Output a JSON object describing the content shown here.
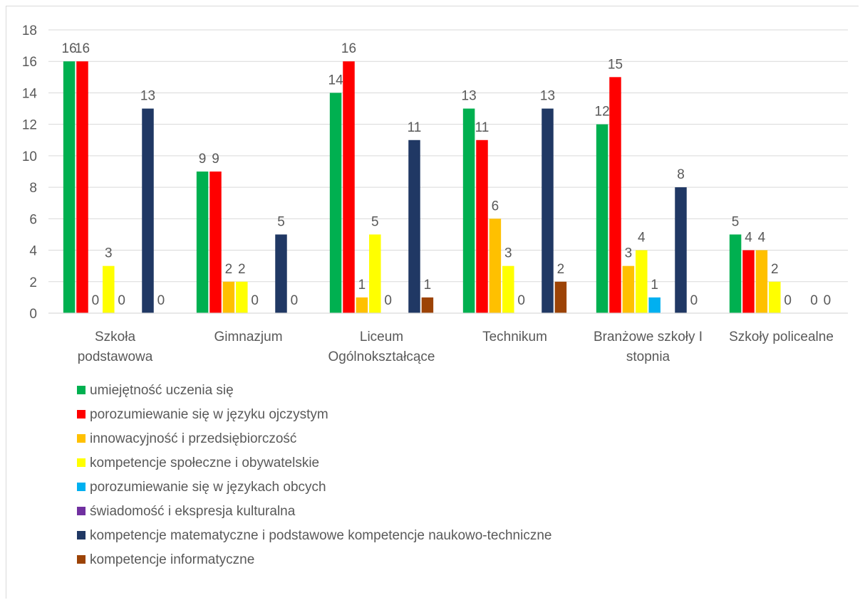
{
  "chart_data": {
    "type": "bar",
    "categories": [
      [
        "Szkoła",
        "podstawowa"
      ],
      [
        "Gimnazjum"
      ],
      [
        "Liceum",
        "Ogólnokształcące"
      ],
      [
        "Technikum"
      ],
      [
        "Branżowe szkoły I",
        "stopnia"
      ],
      [
        "Szkoły policealne"
      ]
    ],
    "series": [
      {
        "name": "umiejętność uczenia się",
        "color": "#00b050",
        "values": [
          16,
          9,
          14,
          13,
          12,
          5
        ]
      },
      {
        "name": "porozumiewanie się w języku ojczystym",
        "color": "#ff0000",
        "values": [
          16,
          9,
          16,
          11,
          15,
          4
        ]
      },
      {
        "name": "innowacyjność i przedsiębiorczość",
        "color": "#ffc000",
        "values": [
          0,
          2,
          1,
          6,
          3,
          4
        ]
      },
      {
        "name": "kompetencje społeczne i obywatelskie",
        "color": "#ffff00",
        "values": [
          3,
          2,
          5,
          3,
          4,
          2
        ]
      },
      {
        "name": "porozumiewanie się w językach obcych",
        "color": "#00b0f0",
        "values": [
          0,
          0,
          0,
          0,
          1,
          0
        ]
      },
      {
        "name": "świadomość i ekspresja kulturalna",
        "color": "#7030a0",
        "values": [
          0,
          0,
          0,
          0,
          0,
          0
        ]
      },
      {
        "name": "kompetencje matematyczne i podstawowe kompetencje naukowo-techniczne",
        "color": "#203864",
        "values": [
          13,
          5,
          11,
          13,
          8,
          0
        ]
      },
      {
        "name": "kompetencje informatyczne",
        "color": "#9c4306",
        "values": [
          0,
          0,
          1,
          2,
          0,
          0
        ]
      }
    ],
    "yticks": [
      0,
      2,
      4,
      6,
      8,
      10,
      12,
      14,
      16,
      18
    ],
    "ylim": [
      0,
      18
    ],
    "grid": true,
    "legend_position": "bottom-left"
  }
}
